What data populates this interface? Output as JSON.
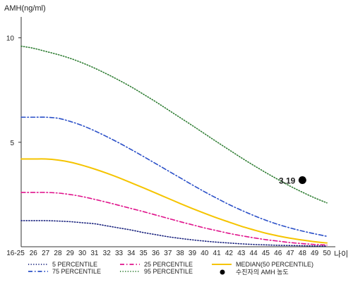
{
  "chart_data": {
    "type": "line",
    "ylabel": "AMH(ng/ml)",
    "xlabel": "나이",
    "ylim": [
      0,
      11
    ],
    "yticks": [
      5,
      10
    ],
    "grid": false,
    "legend_position": "bottom",
    "categories": [
      "16-25",
      "26",
      "27",
      "28",
      "29",
      "30",
      "31",
      "32",
      "33",
      "34",
      "35",
      "36",
      "37",
      "38",
      "39",
      "40",
      "41",
      "42",
      "43",
      "44",
      "45",
      "46",
      "47",
      "48",
      "49",
      "50"
    ],
    "series": [
      {
        "name": "5 PERCENTILE",
        "color": "#1a237e",
        "dash": "dotted",
        "values": [
          1.25,
          1.25,
          1.25,
          1.23,
          1.2,
          1.15,
          1.1,
          1.0,
          0.9,
          0.8,
          0.68,
          0.58,
          0.48,
          0.4,
          0.33,
          0.27,
          0.22,
          0.18,
          0.14,
          0.11,
          0.09,
          0.07,
          0.06,
          0.05,
          0.04,
          0.03
        ]
      },
      {
        "name": "25 PERCENTILE",
        "color": "#e0138c",
        "dash": "dashdot",
        "values": [
          2.6,
          2.6,
          2.6,
          2.57,
          2.5,
          2.4,
          2.27,
          2.13,
          1.98,
          1.83,
          1.68,
          1.52,
          1.36,
          1.2,
          1.05,
          0.9,
          0.77,
          0.64,
          0.53,
          0.43,
          0.34,
          0.27,
          0.2,
          0.15,
          0.11,
          0.08
        ]
      },
      {
        "name": "MEDIAN(50 PERCENTILE)",
        "color": "#f5c400",
        "dash": "solid",
        "values": [
          4.2,
          4.2,
          4.2,
          4.15,
          4.05,
          3.9,
          3.72,
          3.52,
          3.3,
          3.06,
          2.82,
          2.57,
          2.32,
          2.07,
          1.83,
          1.6,
          1.38,
          1.18,
          0.98,
          0.81,
          0.65,
          0.52,
          0.41,
          0.32,
          0.24,
          0.18
        ]
      },
      {
        "name": "75 PERCENTILE",
        "color": "#2b50c8",
        "dash": "dashdot",
        "values": [
          6.2,
          6.2,
          6.2,
          6.15,
          6.0,
          5.8,
          5.55,
          5.27,
          4.97,
          4.65,
          4.32,
          3.98,
          3.64,
          3.3,
          2.96,
          2.63,
          2.32,
          2.02,
          1.75,
          1.5,
          1.27,
          1.07,
          0.9,
          0.75,
          0.62,
          0.5
        ]
      },
      {
        "name": "95 PERCENTILE",
        "color": "#2e7d32",
        "dash": "dotted",
        "values": [
          9.6,
          9.5,
          9.35,
          9.2,
          9.02,
          8.8,
          8.55,
          8.27,
          7.97,
          7.65,
          7.3,
          6.94,
          6.56,
          6.18,
          5.8,
          5.41,
          5.02,
          4.64,
          4.26,
          3.9,
          3.55,
          3.22,
          2.9,
          2.61,
          2.34,
          2.1
        ]
      }
    ],
    "point": {
      "name": "수진자의 AMH 농도",
      "x": "48",
      "value": 3.19,
      "label": "3.19",
      "color": "#000000"
    }
  }
}
